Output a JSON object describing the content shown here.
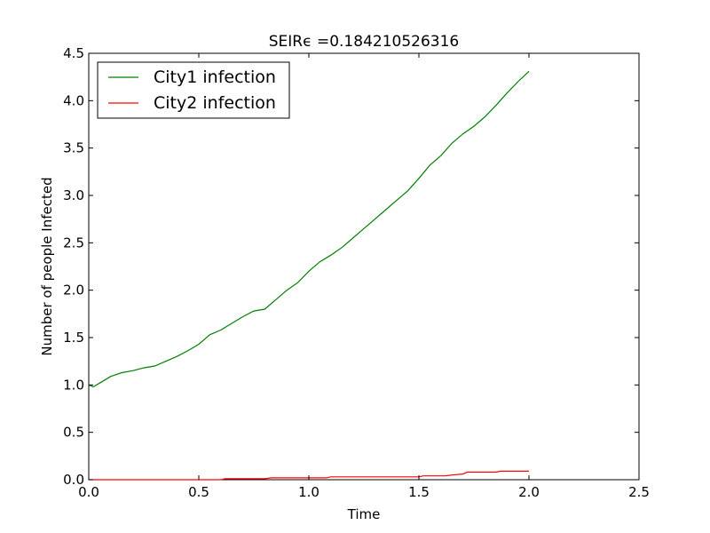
{
  "chart_data": {
    "type": "line",
    "title": "SEIRϵ =0.184210526316",
    "xlabel": "Time",
    "ylabel": "Number of people Infected",
    "xlim": [
      0.0,
      2.5
    ],
    "ylim": [
      0.0,
      4.5
    ],
    "xticks": [
      "0.0",
      "0.5",
      "1.0",
      "1.5",
      "2.0",
      "2.5"
    ],
    "yticks": [
      "0.0",
      "0.5",
      "1.0",
      "1.5",
      "2.0",
      "2.5",
      "3.0",
      "3.5",
      "4.0",
      "4.5"
    ],
    "grid": false,
    "legend_position": "top-left",
    "series": [
      {
        "name": "City1 infection",
        "color": "#008000",
        "x": [
          0.0,
          0.02,
          0.05,
          0.1,
          0.15,
          0.2,
          0.25,
          0.3,
          0.35,
          0.4,
          0.45,
          0.5,
          0.55,
          0.6,
          0.65,
          0.7,
          0.75,
          0.8,
          0.85,
          0.9,
          0.95,
          1.0,
          1.05,
          1.1,
          1.15,
          1.2,
          1.25,
          1.3,
          1.35,
          1.4,
          1.45,
          1.5,
          1.55,
          1.6,
          1.65,
          1.7,
          1.75,
          1.8,
          1.85,
          1.9,
          1.95,
          2.0
        ],
        "y": [
          1.0,
          0.98,
          1.02,
          1.09,
          1.13,
          1.15,
          1.18,
          1.2,
          1.25,
          1.3,
          1.36,
          1.43,
          1.53,
          1.58,
          1.65,
          1.72,
          1.78,
          1.8,
          1.9,
          2.0,
          2.08,
          2.2,
          2.3,
          2.37,
          2.45,
          2.55,
          2.65,
          2.75,
          2.85,
          2.95,
          3.05,
          3.18,
          3.32,
          3.42,
          3.55,
          3.65,
          3.73,
          3.83,
          3.95,
          4.08,
          4.2,
          4.31
        ]
      },
      {
        "name": "City2 infection",
        "color": "#ff0000",
        "x": [
          0.0,
          0.6,
          0.62,
          0.8,
          0.83,
          1.08,
          1.1,
          1.5,
          1.52,
          1.62,
          1.65,
          1.7,
          1.72,
          1.85,
          1.87,
          2.0
        ],
        "y": [
          0.0,
          0.0,
          0.01,
          0.01,
          0.02,
          0.02,
          0.03,
          0.03,
          0.04,
          0.04,
          0.05,
          0.06,
          0.08,
          0.08,
          0.09,
          0.09
        ]
      }
    ]
  }
}
